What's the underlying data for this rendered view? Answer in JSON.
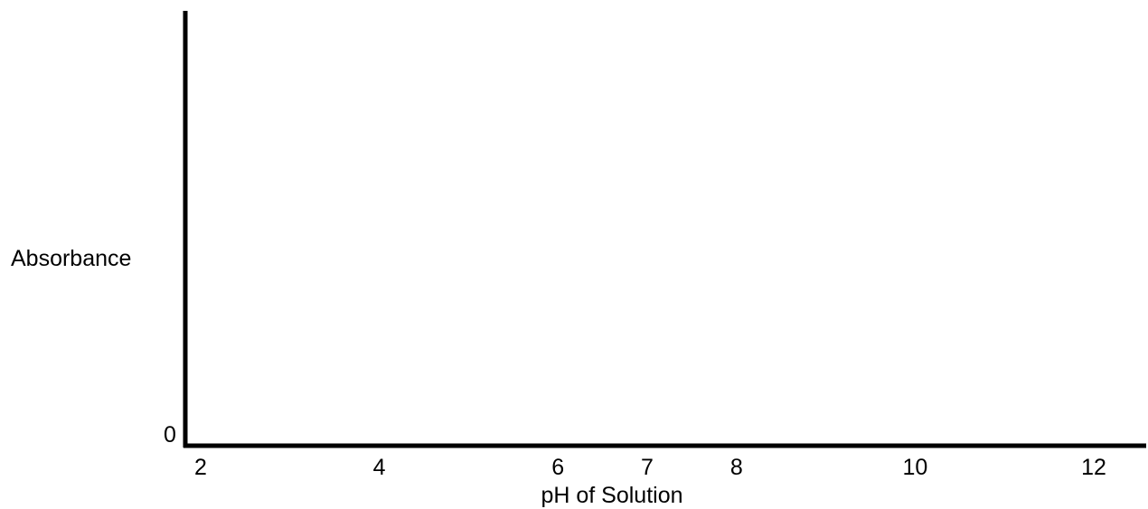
{
  "chart_data": {
    "type": "line",
    "title": "",
    "xlabel": "pH of Solution",
    "ylabel": "Absorbance",
    "x_ticks": [
      2,
      4,
      6,
      7,
      8,
      10,
      12
    ],
    "x_tick_labels": [
      "2",
      "4",
      "6",
      "7",
      "8",
      "10",
      "12"
    ],
    "xlim": [
      2,
      12
    ],
    "y_ticks": [
      0
    ],
    "y_tick_labels": [
      "0"
    ],
    "series": [],
    "grid": false,
    "legend": "none",
    "axis_color": "#000000"
  }
}
